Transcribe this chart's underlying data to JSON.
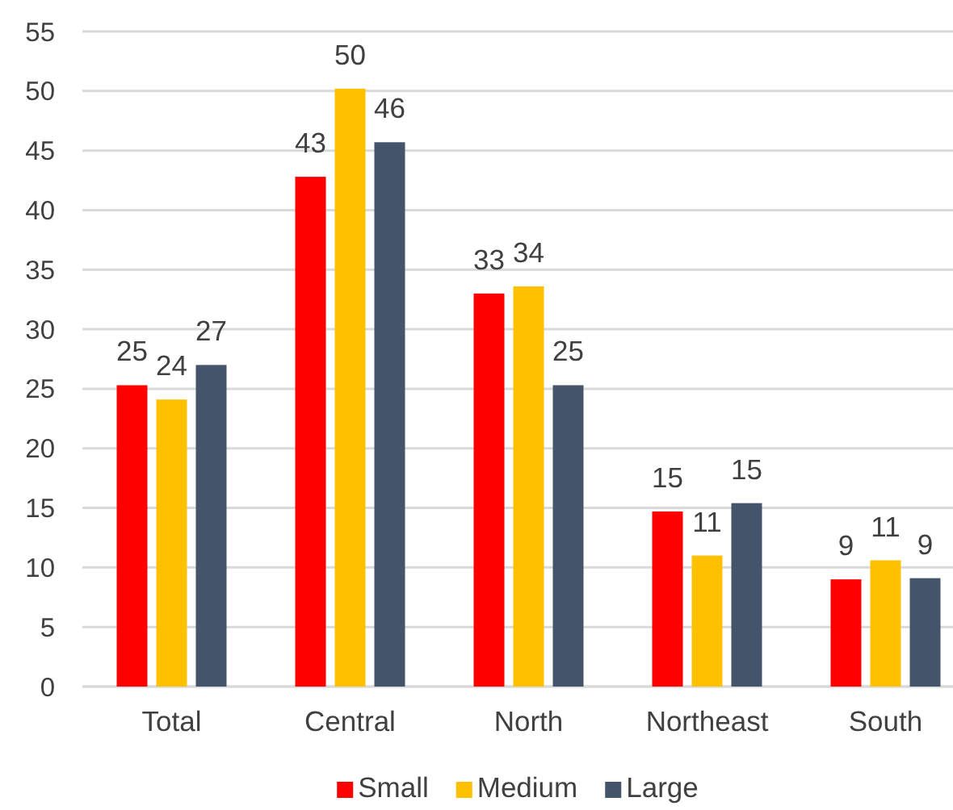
{
  "chart_data": {
    "type": "bar",
    "categories": [
      "Total",
      "Central",
      "North",
      "Northeast",
      "South"
    ],
    "series": [
      {
        "name": "Small",
        "color": "#ff0000",
        "values": [
          25.3,
          42.8,
          33.0,
          14.7,
          9.0
        ],
        "value_labels": [
          "25",
          "43",
          "33",
          "15",
          "9"
        ]
      },
      {
        "name": "Medium",
        "color": "#ffc000",
        "values": [
          24.1,
          50.2,
          33.6,
          11.0,
          10.6
        ],
        "value_labels": [
          "24",
          "50",
          "34",
          "11",
          "11"
        ]
      },
      {
        "name": "Large",
        "color": "#44546a",
        "values": [
          27.0,
          45.7,
          25.3,
          15.4,
          9.1
        ],
        "value_labels": [
          "27",
          "46",
          "25",
          "15",
          "9"
        ]
      }
    ],
    "ylim": [
      0,
      55
    ],
    "yticks": [
      0,
      5,
      10,
      15,
      20,
      25,
      30,
      35,
      40,
      45,
      50,
      55
    ],
    "grid": "y",
    "legend": "bottom"
  }
}
